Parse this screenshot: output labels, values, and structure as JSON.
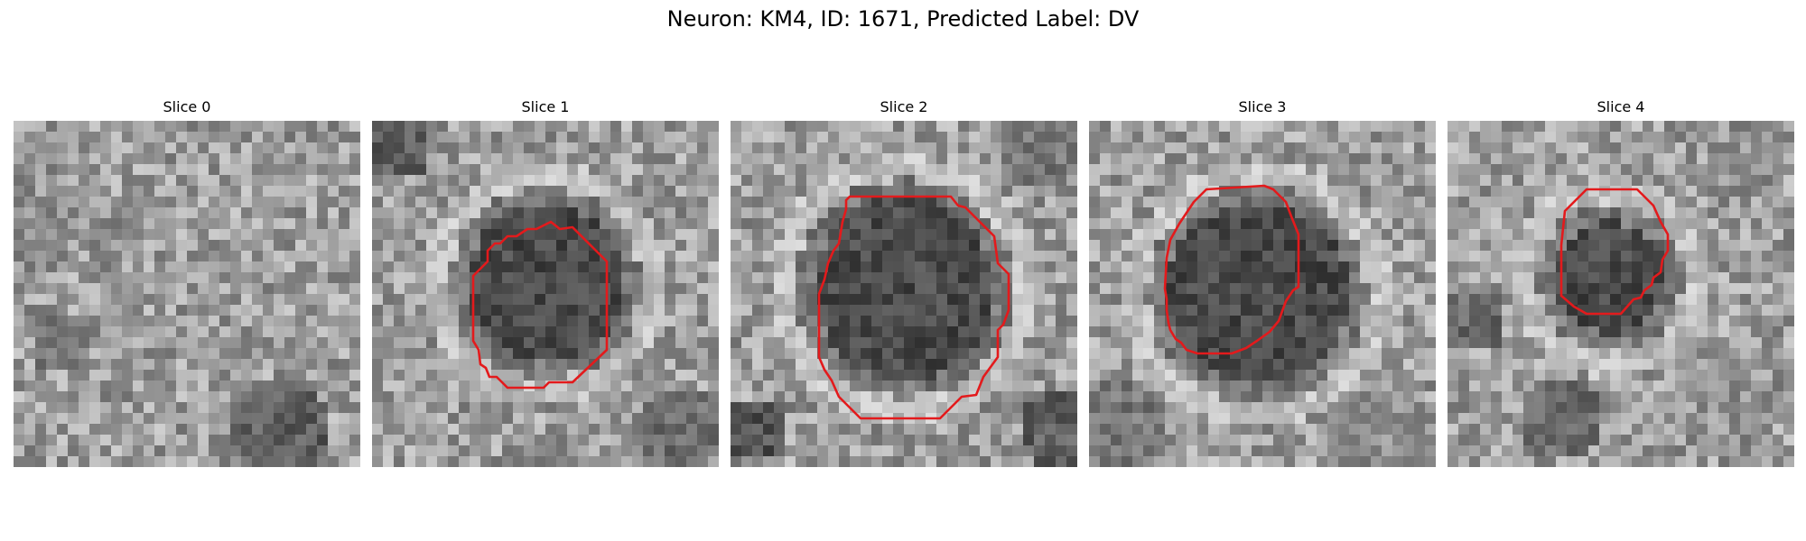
{
  "figure": {
    "title": "Neuron: KM4, ID: 1671, Predicted Label: DV"
  },
  "panels": [
    {
      "title": "Slice 0",
      "has_contour": false
    },
    {
      "title": "Slice 1",
      "has_contour": true
    },
    {
      "title": "Slice 2",
      "has_contour": true
    },
    {
      "title": "Slice 3",
      "has_contour": true
    },
    {
      "title": "Slice 4",
      "has_contour": true
    }
  ],
  "style": {
    "contour_color": "#e31a1c",
    "colormap": "grayscale"
  }
}
